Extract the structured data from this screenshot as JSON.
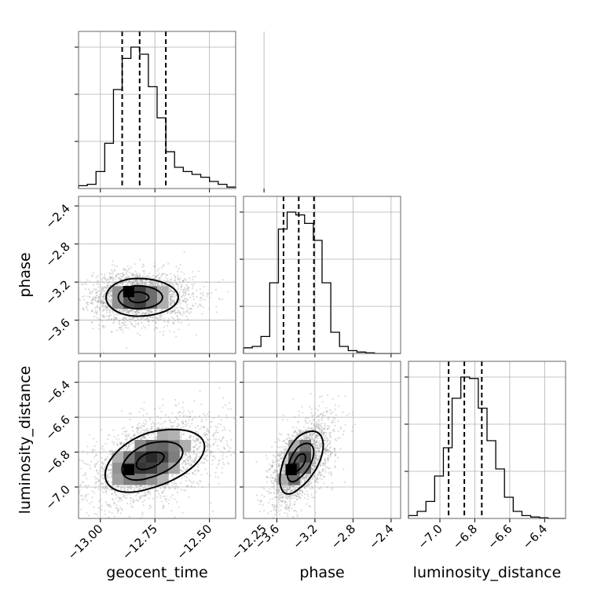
{
  "chart_data": {
    "type": "corner",
    "parameters": [
      "geocent_time",
      "phase",
      "luminosity_distance"
    ],
    "axes": {
      "geocent_time": {
        "label": "geocent_time",
        "range": [
          -13.1,
          -12.38
        ],
        "ticks": [
          -13.0,
          -12.75,
          -12.5,
          -12.25
        ],
        "tick_labels": [
          "−13.00",
          "−12.75",
          "−12.50",
          "−12.25"
        ]
      },
      "phase": {
        "label": "phase",
        "range": [
          -3.95,
          -2.3
        ],
        "ticks": [
          -3.6,
          -3.2,
          -2.8,
          -2.4
        ],
        "tick_labels": [
          "−3.6",
          "−3.2",
          "−2.8",
          "−2.4"
        ]
      },
      "luminosity_distance": {
        "label": "luminosity_distance",
        "range": [
          -7.18,
          -6.28
        ],
        "ticks": [
          -7.0,
          -6.8,
          -6.6,
          -6.4
        ],
        "tick_labels": [
          "−7.0",
          "−6.8",
          "−6.6",
          "−6.4"
        ]
      }
    },
    "histograms": {
      "geocent_time": {
        "bin_range": [
          -13.1,
          -12.38
        ],
        "counts": [
          0.02,
          0.03,
          0.12,
          0.32,
          0.7,
          0.92,
          1.0,
          0.95,
          0.72,
          0.5,
          0.26,
          0.15,
          0.12,
          0.1,
          0.08,
          0.05,
          0.03,
          0.01
        ],
        "quantiles": [
          -12.9,
          -12.82,
          -12.7
        ]
      },
      "phase": {
        "bin_range": [
          -3.95,
          -2.3
        ],
        "counts": [
          0.04,
          0.05,
          0.12,
          0.5,
          0.88,
          1.0,
          0.98,
          0.92,
          0.8,
          0.5,
          0.15,
          0.05,
          0.02,
          0.01,
          0.005,
          0.0,
          0.0,
          0.0
        ],
        "quantiles": [
          -3.53,
          -3.37,
          -3.21
        ]
      },
      "luminosity_distance": {
        "bin_range": [
          -7.18,
          -6.28
        ],
        "counts": [
          0.02,
          0.05,
          0.12,
          0.3,
          0.5,
          0.85,
          1.0,
          0.99,
          0.78,
          0.55,
          0.35,
          0.15,
          0.05,
          0.02,
          0.01,
          0.005,
          0.0,
          0.0
        ],
        "quantiles": [
          -6.95,
          -6.86,
          -6.76
        ]
      }
    },
    "joint": [
      {
        "x": "geocent_time",
        "y": "phase",
        "mean": [
          -12.83,
          -3.36
        ],
        "sd": [
          0.08,
          0.11
        ],
        "corr": 0.0,
        "scatter_points": 2200,
        "density_peak": [
          -12.87,
          -3.3
        ],
        "contour_levels": [
          0.5,
          1.1,
          1.8
        ]
      },
      {
        "x": "geocent_time",
        "y": "luminosity_distance",
        "mean": [
          -12.78,
          -6.85
        ],
        "sd": [
          0.11,
          0.1
        ],
        "corr": 0.45,
        "scatter_points": 2200,
        "density_peak": [
          -12.87,
          -6.9
        ],
        "contour_levels": [
          0.5,
          1.1,
          1.8
        ]
      },
      {
        "x": "phase",
        "y": "luminosity_distance",
        "mean": [
          -3.37,
          -6.86
        ],
        "sd": [
          0.11,
          0.1
        ],
        "corr": 0.55,
        "scatter_points": 2200,
        "density_peak": [
          -3.45,
          -6.9
        ],
        "contour_levels": [
          0.5,
          1.1,
          1.8
        ]
      }
    ],
    "grid": true,
    "colors": {
      "line": "#000000",
      "scatter": "#9a9a9a",
      "grid": "#b0b0b0",
      "frame": "#666666"
    }
  }
}
